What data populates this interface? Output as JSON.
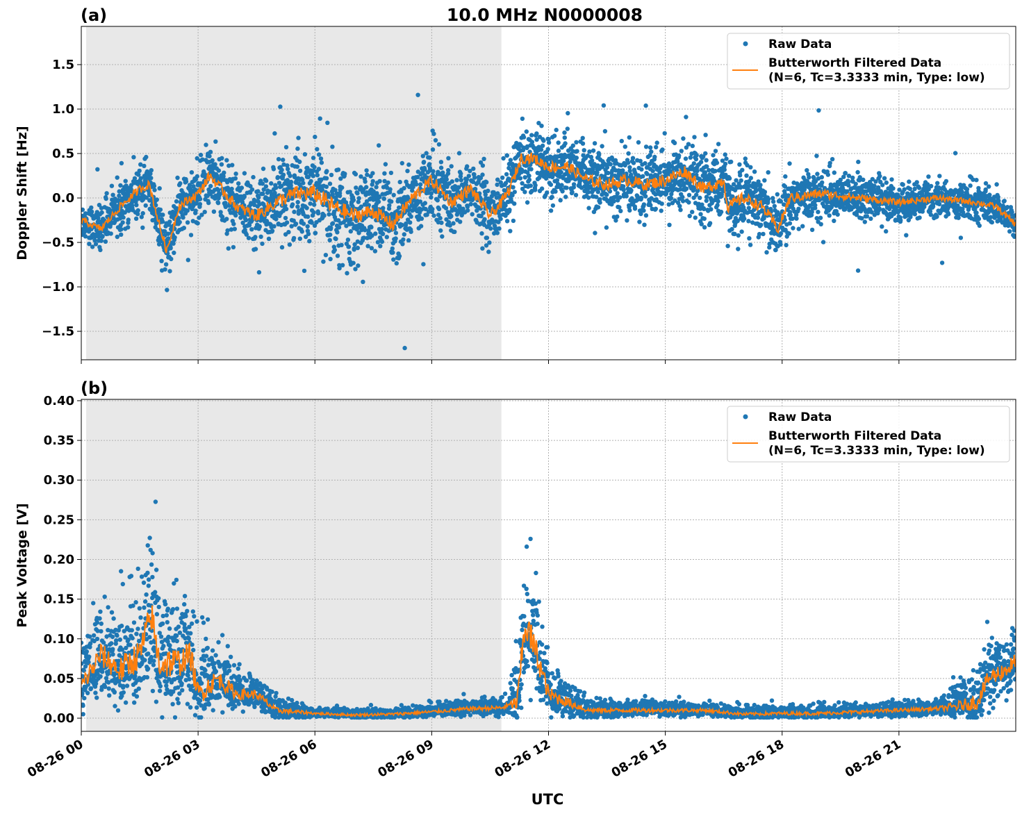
{
  "title": "10.0 MHz N0000008",
  "xlabel": "UTC",
  "colors": {
    "raw": "#1f77b4",
    "filtered": "#ff7f0e",
    "night_shade": "#e8e8e8"
  },
  "legend": {
    "raw": "Raw Data",
    "filtered_line1": "Butterworth Filtered Data",
    "filtered_line2": "(N=6, Tc=3.3333 min, Type: low)",
    "placement": "top-right"
  },
  "x_tick_labels": [
    "08-26 00",
    "08-26 03",
    "08-26 06",
    "08-26 09",
    "08-26 12",
    "08-26 15",
    "08-26 18",
    "08-26 21"
  ],
  "chart_data": [
    {
      "type": "scatter",
      "panel_label": "(a)",
      "ylabel": "Doppler Shift [Hz]",
      "xlim_hours": [
        0,
        24
      ],
      "ylim": [
        -1.82,
        1.93
      ],
      "y_ticks": [
        -1.5,
        -1.0,
        -0.5,
        0.0,
        0.5,
        1.0,
        1.5
      ],
      "y_tick_labels": [
        "−1.5",
        "−1.0",
        "−0.5",
        "0.0",
        "0.5",
        "1.0",
        "1.5"
      ],
      "grid": true,
      "shaded_hours": [
        0.125,
        10.79
      ],
      "filtered": {
        "x_hours": [
          0,
          0.5,
          1,
          1.5,
          1.75,
          2,
          2.2,
          2.5,
          3,
          3.3,
          3.6,
          4,
          4.5,
          5,
          5.5,
          6,
          6.5,
          7,
          7.5,
          8,
          8.5,
          9,
          9.5,
          10,
          10.5,
          10.8,
          11,
          11.3,
          11.6,
          12,
          12.5,
          13,
          13.5,
          14,
          14.5,
          15,
          15.5,
          16,
          16.5,
          16.6,
          17,
          17.5,
          17.9,
          18.2,
          19,
          20,
          21,
          22,
          23,
          23.5,
          24
        ],
        "y": [
          -0.25,
          -0.35,
          -0.1,
          0.1,
          0.15,
          -0.3,
          -0.6,
          -0.1,
          0.05,
          0.25,
          0.1,
          -0.1,
          -0.2,
          -0.05,
          0.05,
          0.05,
          -0.1,
          -0.2,
          -0.15,
          -0.3,
          0.0,
          0.2,
          -0.05,
          0.1,
          -0.2,
          -0.05,
          0.1,
          0.45,
          0.45,
          0.35,
          0.35,
          0.2,
          0.15,
          0.2,
          0.15,
          0.2,
          0.3,
          0.1,
          0.2,
          -0.1,
          0.0,
          -0.1,
          -0.35,
          0.0,
          0.05,
          0.0,
          -0.05,
          0.0,
          -0.05,
          -0.1,
          -0.3
        ]
      },
      "raw_spread": {
        "x_hours": [
          0,
          1,
          4,
          6,
          9,
          11,
          16,
          19,
          21,
          24
        ],
        "half_width": [
          0.2,
          0.25,
          0.35,
          0.55,
          0.4,
          0.35,
          0.4,
          0.3,
          0.2,
          0.2
        ]
      }
    },
    {
      "type": "scatter",
      "panel_label": "(b)",
      "ylabel": "Peak Voltage [V]",
      "xlim_hours": [
        0,
        24
      ],
      "ylim": [
        -0.0166,
        0.4017
      ],
      "y_ticks": [
        0,
        0.05,
        0.1,
        0.15,
        0.2,
        0.25,
        0.3,
        0.35,
        0.4
      ],
      "y_tick_labels": [
        "0.00",
        "0.05",
        "0.10",
        "0.15",
        "0.20",
        "0.25",
        "0.30",
        "0.35",
        "0.40"
      ],
      "grid": true,
      "shaded_hours": [
        0.125,
        10.79
      ],
      "filtered": {
        "x_hours": [
          0,
          0.5,
          1,
          1.5,
          1.8,
          2,
          2.5,
          2.8,
          3,
          3.5,
          4,
          4.5,
          5,
          5.5,
          6,
          7,
          8,
          9,
          10,
          10.8,
          11.2,
          11.4,
          11.7,
          12,
          12.5,
          13,
          14,
          15,
          16,
          17,
          18,
          19,
          20,
          21,
          22,
          22.5,
          23,
          23.3,
          23.7,
          24
        ],
        "y": [
          0.04,
          0.08,
          0.06,
          0.08,
          0.13,
          0.07,
          0.07,
          0.08,
          0.03,
          0.05,
          0.03,
          0.03,
          0.01,
          0.008,
          0.006,
          0.004,
          0.005,
          0.008,
          0.012,
          0.013,
          0.02,
          0.12,
          0.08,
          0.03,
          0.02,
          0.01,
          0.01,
          0.01,
          0.01,
          0.005,
          0.006,
          0.006,
          0.008,
          0.01,
          0.012,
          0.015,
          0.02,
          0.05,
          0.06,
          0.07
        ]
      },
      "raw_spread": {
        "x_hours": [
          0,
          1,
          2,
          3,
          4,
          5,
          6,
          9,
          11,
          11.4,
          12,
          13,
          17,
          22,
          23,
          24
        ],
        "half_width": [
          0.05,
          0.07,
          0.09,
          0.06,
          0.03,
          0.015,
          0.006,
          0.008,
          0.012,
          0.1,
          0.04,
          0.012,
          0.008,
          0.01,
          0.04,
          0.05
        ]
      }
    }
  ]
}
